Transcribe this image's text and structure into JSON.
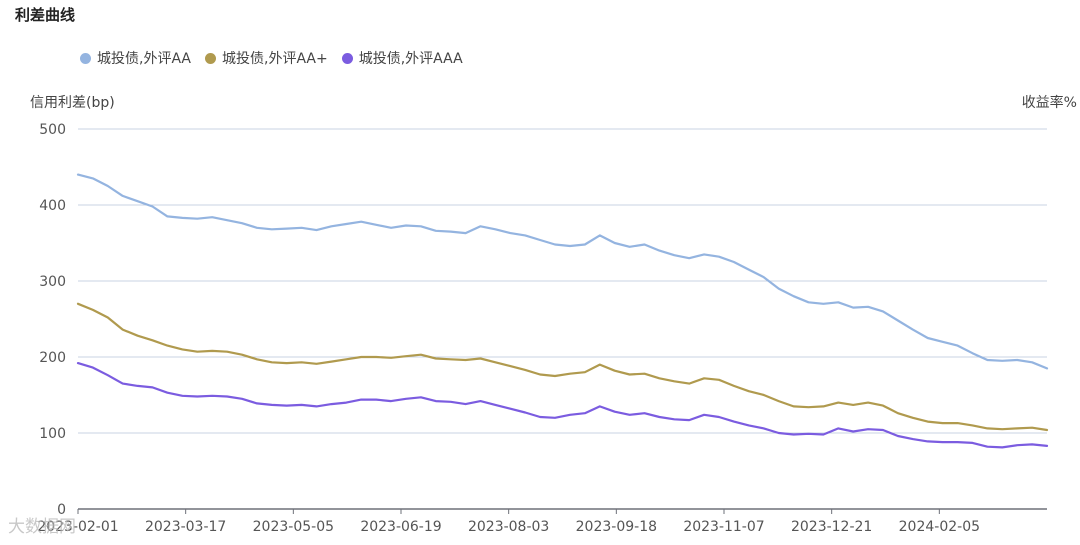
{
  "chart_data": {
    "type": "line",
    "title": "利差曲线",
    "ylabel": "信用利差(bp)",
    "ylabel_right": "收益率%",
    "ylim": [
      0,
      500
    ],
    "yticks": [
      0,
      100,
      200,
      300,
      400,
      500
    ],
    "xticks": [
      "2023-02-01",
      "2023-03-17",
      "2023-05-05",
      "2023-06-19",
      "2023-08-03",
      "2023-09-18",
      "2023-11-07",
      "2023-12-21",
      "2024-02-05"
    ],
    "xlabel": "",
    "grid": true,
    "legend_position": "top-left",
    "series": [
      {
        "name": "城投债,外评AA",
        "color": "#94b4e0",
        "values": [
          440,
          435,
          425,
          412,
          405,
          398,
          385,
          383,
          382,
          384,
          380,
          376,
          370,
          368,
          369,
          370,
          367,
          372,
          375,
          378,
          374,
          370,
          373,
          372,
          366,
          365,
          363,
          372,
          368,
          363,
          360,
          354,
          348,
          346,
          348,
          360,
          350,
          345,
          348,
          340,
          334,
          330,
          335,
          332,
          325,
          315,
          305,
          290,
          280,
          272,
          270,
          272,
          265,
          266,
          260,
          248,
          236,
          225,
          220,
          215,
          205,
          196,
          195,
          196,
          193,
          185
        ]
      },
      {
        "name": "城投债,外评AA+",
        "color": "#b09a4e",
        "values": [
          270,
          262,
          252,
          236,
          228,
          222,
          215,
          210,
          207,
          208,
          207,
          203,
          197,
          193,
          192,
          193,
          191,
          194,
          197,
          200,
          200,
          199,
          201,
          203,
          198,
          197,
          196,
          198,
          193,
          188,
          183,
          177,
          175,
          178,
          180,
          190,
          182,
          177,
          178,
          172,
          168,
          165,
          172,
          170,
          162,
          155,
          150,
          142,
          135,
          134,
          135,
          140,
          137,
          140,
          136,
          126,
          120,
          115,
          113,
          113,
          110,
          106,
          105,
          106,
          107,
          104
        ]
      },
      {
        "name": "城投债,外评AAA",
        "color": "#7b5ce0",
        "values": [
          192,
          186,
          176,
          165,
          162,
          160,
          153,
          149,
          148,
          149,
          148,
          145,
          139,
          137,
          136,
          137,
          135,
          138,
          140,
          144,
          144,
          142,
          145,
          147,
          142,
          141,
          138,
          142,
          137,
          132,
          127,
          121,
          120,
          124,
          126,
          135,
          128,
          124,
          126,
          121,
          118,
          117,
          124,
          121,
          115,
          110,
          106,
          100,
          98,
          99,
          98,
          106,
          102,
          105,
          104,
          96,
          92,
          89,
          88,
          88,
          87,
          82,
          81,
          84,
          85,
          83
        ]
      }
    ]
  },
  "watermark": "大数据网"
}
